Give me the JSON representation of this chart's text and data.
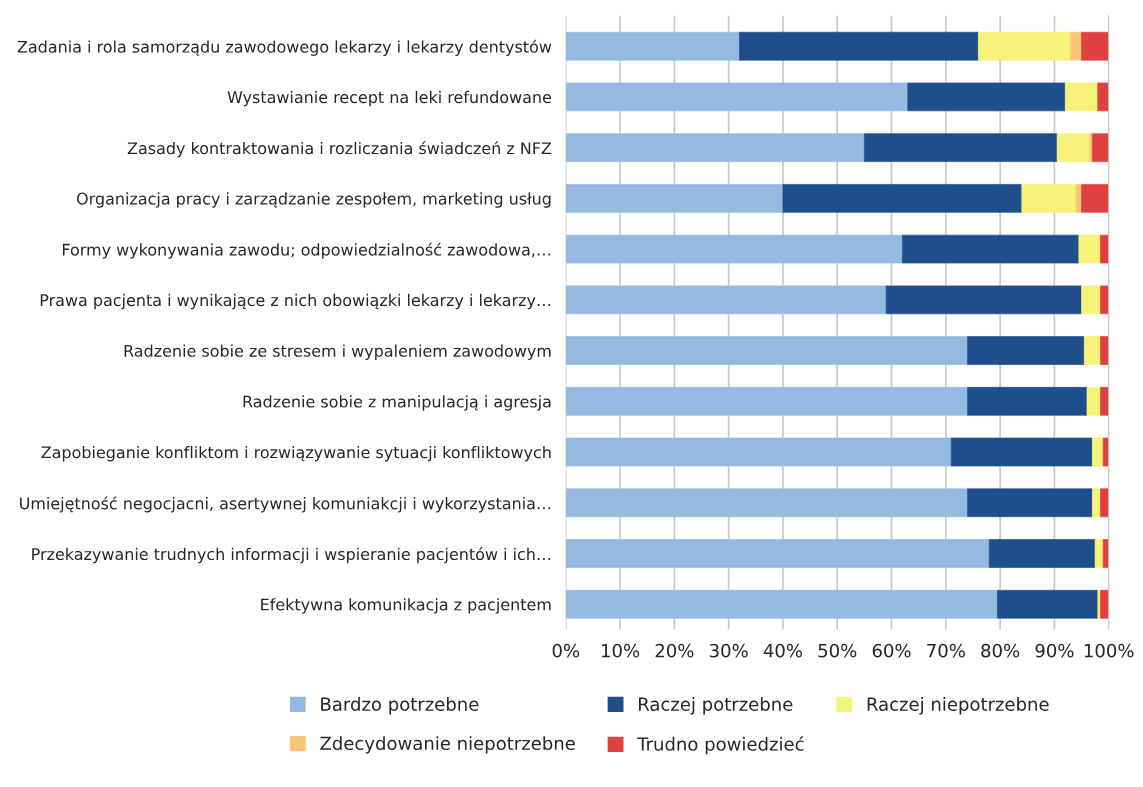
{
  "chart_data": {
    "type": "bar",
    "orientation": "horizontal",
    "stacked": true,
    "categories": [
      "Zadania i rola samorządu zawodowego lekarzy i lekarzy dentystów",
      "Wystawianie recept na leki refundowane",
      "Zasady kontraktowania i rozliczania świadczeń z NFZ",
      "Organizacja pracy i zarządzanie zespołem, marketing usług",
      "Formy wykonywania zawodu; odpowiedzialność zawodowa,…",
      "Prawa pacjenta i wynikające z nich obowiązki lekarzy i lekarzy…",
      "Radzenie sobie ze stresem i wypaleniem zawodowym",
      "Radzenie sobie z manipulacją i agresja",
      "Zapobieganie konfliktom i rozwiązywanie sytuacji konfliktowych",
      "Umiejętność negocjacni, asertywnej komuniakcji i wykorzystania…",
      "Przekazywanie trudnych informacji i wspieranie pacjentów i ich…",
      "Efektywna komunikacja z pacjentem"
    ],
    "series": [
      {
        "name": "Bardzo potrzebne",
        "color": "#95b9e1",
        "values": [
          32,
          63,
          55,
          40,
          62,
          59,
          74,
          74,
          71,
          74,
          78,
          79.5
        ]
      },
      {
        "name": "Raczej potrzebne",
        "color": "#1f4e8c",
        "values": [
          44,
          29,
          35.5,
          44,
          32.5,
          36,
          21.5,
          22,
          26,
          23,
          19.5,
          18.5
        ]
      },
      {
        "name": "Raczej niepotrzebne",
        "color": "#f7f279",
        "values": [
          17,
          6,
          6,
          10,
          4,
          3.5,
          3,
          2.5,
          2,
          1.5,
          1.5,
          0.5
        ]
      },
      {
        "name": "Zdecydowanie niepotrzebne",
        "color": "#fbc67a",
        "values": [
          2,
          0,
          0.5,
          1,
          0,
          0,
          0,
          0,
          0,
          0,
          0,
          0
        ]
      },
      {
        "name": "Trudno powiedzieć",
        "color": "#e0403f",
        "values": [
          5,
          2,
          3,
          5,
          1.5,
          1.5,
          1.5,
          1.5,
          1,
          1.5,
          1,
          1.5
        ]
      }
    ],
    "xlim": [
      0,
      100
    ],
    "xticks": [
      {
        "value": 0,
        "label": "0%"
      },
      {
        "value": 10,
        "label": "10%"
      },
      {
        "value": 20,
        "label": "20%"
      },
      {
        "value": 30,
        "label": "30%"
      },
      {
        "value": 40,
        "label": "40%"
      },
      {
        "value": 50,
        "label": "50%"
      },
      {
        "value": 60,
        "label": "60%"
      },
      {
        "value": 70,
        "label": "70%"
      },
      {
        "value": 80,
        "label": "80%"
      },
      {
        "value": 90,
        "label": "90%"
      },
      {
        "value": 100,
        "label": "100%"
      }
    ],
    "grid": "x",
    "legend": "bottom"
  }
}
